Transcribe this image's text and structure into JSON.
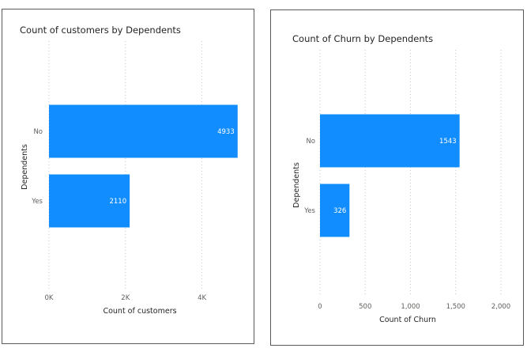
{
  "chart_data": [
    {
      "type": "bar",
      "orientation": "horizontal",
      "title": "Count of customers by Dependents",
      "xlabel": "Count of customers",
      "ylabel": "Dependents",
      "categories": [
        "No",
        "Yes"
      ],
      "values": [
        4933,
        2110
      ],
      "data_labels": [
        "4933",
        "2110"
      ],
      "xlim": [
        0,
        5000
      ],
      "xticks": [
        0,
        2000,
        4000
      ],
      "xtick_labels": [
        "0K",
        "2K",
        "4K"
      ],
      "grid": true,
      "bar_color": "#118DFF"
    },
    {
      "type": "bar",
      "orientation": "horizontal",
      "title": "Count of Churn by Dependents",
      "xlabel": "Count of Churn",
      "ylabel": "Dependents",
      "categories": [
        "No",
        "Yes"
      ],
      "values": [
        1543,
        326
      ],
      "data_labels": [
        "1543",
        "326"
      ],
      "xlim": [
        0,
        2000
      ],
      "xticks": [
        0,
        500,
        1000,
        1500,
        2000
      ],
      "xtick_labels": [
        "0",
        "500",
        "1,000",
        "1,500",
        "2,000"
      ],
      "grid": true,
      "bar_color": "#118DFF"
    }
  ]
}
